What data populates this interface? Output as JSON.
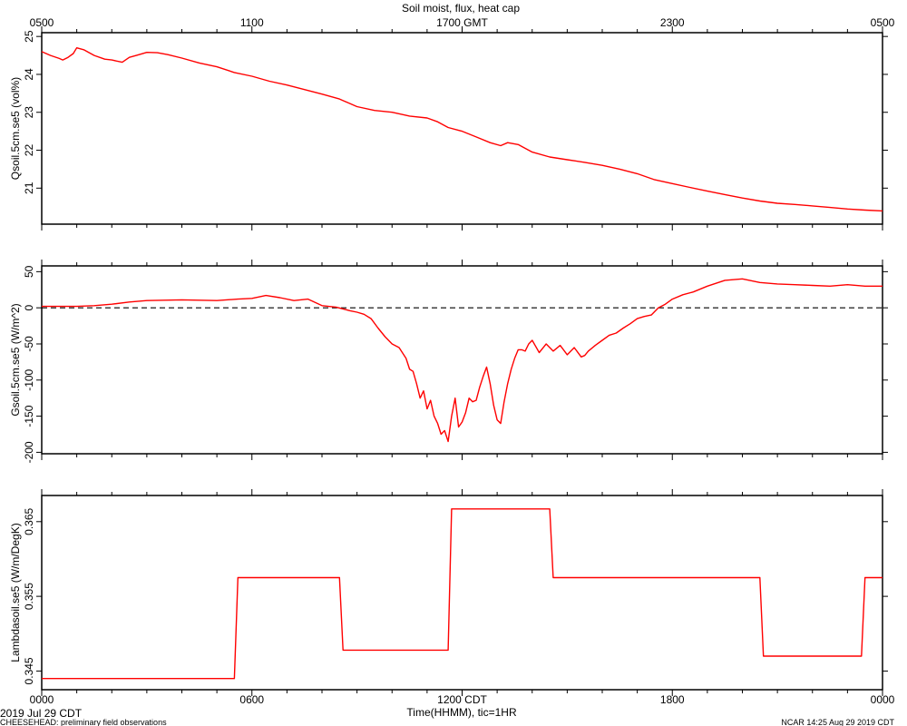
{
  "chart_data": [
    {
      "type": "line",
      "title": "Soil moist, flux, heat cap",
      "ylabel": "Qsoil.5cm.se5 (vol%)",
      "ylim": [
        20.05,
        25.1
      ],
      "yticks": [
        "21",
        "22",
        "23",
        "24",
        "25"
      ],
      "top_axis": {
        "ticks": [
          "0500",
          "1100",
          "1700 GMT",
          "2300",
          "0500"
        ],
        "range_hours": [
          0,
          24
        ]
      },
      "x": [
        0,
        0.25,
        0.5,
        0.6,
        0.75,
        0.9,
        1.0,
        1.2,
        1.5,
        1.8,
        2.0,
        2.3,
        2.5,
        2.7,
        3.0,
        3.3,
        3.6,
        4.0,
        4.5,
        5.0,
        5.5,
        6.0,
        6.5,
        7.0,
        7.5,
        8.0,
        8.5,
        9.0,
        9.5,
        10.0,
        10.5,
        11.0,
        11.3,
        11.6,
        12.0,
        12.4,
        12.8,
        13.1,
        13.3,
        13.6,
        14.0,
        14.5,
        15.0,
        15.5,
        16.0,
        16.5,
        17.0,
        17.5,
        18.0,
        18.5,
        19.0,
        19.5,
        20.0,
        20.5,
        21.0,
        21.5,
        22.0,
        22.5,
        23.0,
        23.5,
        24.0
      ],
      "series": [
        {
          "color": "#ff0000",
          "values": [
            24.6,
            24.5,
            24.42,
            24.38,
            24.45,
            24.55,
            24.7,
            24.65,
            24.5,
            24.4,
            24.38,
            24.32,
            24.45,
            24.5,
            24.58,
            24.57,
            24.52,
            24.43,
            24.3,
            24.2,
            24.05,
            23.95,
            23.82,
            23.72,
            23.6,
            23.48,
            23.35,
            23.15,
            23.05,
            23.0,
            22.9,
            22.85,
            22.75,
            22.6,
            22.5,
            22.35,
            22.2,
            22.12,
            22.2,
            22.15,
            21.95,
            21.82,
            21.75,
            21.68,
            21.6,
            21.5,
            21.38,
            21.22,
            21.12,
            21.02,
            20.92,
            20.83,
            20.74,
            20.66,
            20.6,
            20.57,
            20.53,
            20.49,
            20.45,
            20.42,
            20.4
          ]
        }
      ]
    },
    {
      "type": "line",
      "ylabel": "Gsoil.5cm.se5 (W/m^2)",
      "ylim": [
        -202,
        58
      ],
      "yticks": [
        "50",
        "0",
        "-50",
        "-100",
        "-150",
        "-200"
      ],
      "reference_line": 0,
      "x": [
        0,
        1.0,
        1.5,
        2.0,
        2.5,
        3.0,
        4.0,
        5.0,
        5.6,
        6.0,
        6.4,
        6.8,
        7.2,
        7.6,
        8.0,
        8.4,
        8.8,
        9.0,
        9.2,
        9.4,
        9.6,
        9.8,
        10.0,
        10.2,
        10.4,
        10.5,
        10.6,
        10.7,
        10.8,
        10.9,
        11.0,
        11.1,
        11.2,
        11.3,
        11.4,
        11.5,
        11.6,
        11.7,
        11.8,
        11.9,
        12.0,
        12.1,
        12.2,
        12.3,
        12.4,
        12.5,
        12.6,
        12.7,
        12.8,
        12.9,
        13.0,
        13.1,
        13.2,
        13.3,
        13.4,
        13.5,
        13.6,
        13.7,
        13.8,
        13.9,
        14.0,
        14.2,
        14.4,
        14.6,
        14.8,
        15.0,
        15.2,
        15.4,
        15.5,
        15.6,
        15.8,
        16.0,
        16.2,
        16.4,
        16.6,
        16.8,
        17.0,
        17.2,
        17.4,
        17.6,
        17.8,
        18.0,
        18.3,
        18.6,
        19.0,
        19.5,
        20.0,
        20.5,
        21.0,
        21.5,
        22.0,
        22.5,
        23.0,
        23.5,
        24.0
      ],
      "series": [
        {
          "color": "#ff0000",
          "values": [
            2,
            2,
            3,
            5,
            8,
            10,
            11,
            10,
            12,
            13,
            17,
            14,
            10,
            12,
            3,
            1,
            -4,
            -6,
            -9,
            -15,
            -28,
            -40,
            -50,
            -55,
            -70,
            -85,
            -88,
            -105,
            -125,
            -115,
            -140,
            -128,
            -150,
            -160,
            -175,
            -170,
            -185,
            -150,
            -125,
            -165,
            -158,
            -145,
            -125,
            -130,
            -128,
            -110,
            -95,
            -82,
            -105,
            -135,
            -155,
            -160,
            -130,
            -105,
            -85,
            -70,
            -58,
            -58,
            -60,
            -50,
            -45,
            -62,
            -50,
            -60,
            -52,
            -65,
            -55,
            -68,
            -66,
            -60,
            -52,
            -45,
            -38,
            -35,
            -28,
            -22,
            -15,
            -12,
            -10,
            0,
            5,
            12,
            18,
            22,
            30,
            38,
            40,
            35,
            33,
            32,
            31,
            30,
            32,
            30,
            30
          ]
        }
      ]
    },
    {
      "type": "line",
      "ylabel": "Lambdasoil.se5 (W/m/DegK)",
      "ylim": [
        0.3425,
        0.3685
      ],
      "yticks": [
        "0.345",
        "0.355",
        "0.365"
      ],
      "xticks": [
        "0000",
        "0600",
        "1200 CDT",
        "1800",
        "0000"
      ],
      "xlabel": "Time(HHMM), tic=1HR",
      "x": [
        0,
        5.5,
        5.6,
        8.5,
        8.6,
        11.6,
        11.7,
        14.5,
        14.6,
        20.5,
        20.6,
        23.4,
        23.5,
        24.0
      ],
      "series": [
        {
          "color": "#ff0000",
          "values": [
            0.344,
            0.344,
            0.3575,
            0.3575,
            0.3478,
            0.3478,
            0.3667,
            0.3667,
            0.3575,
            0.3575,
            0.347,
            0.347,
            0.3575,
            0.3575
          ]
        }
      ]
    }
  ],
  "footer": {
    "date_label": "2019 Jul 29 CDT",
    "project_label": "CHEESEHEAD: preliminary field observations",
    "credit_label": "NCAR 14:25 Aug 29 2019 CDT"
  }
}
